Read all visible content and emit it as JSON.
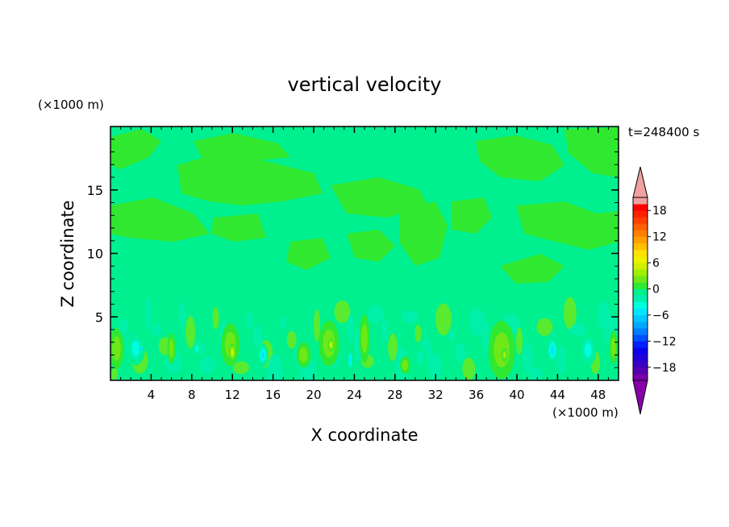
{
  "chart_data": {
    "type": "heatmap",
    "title": "vertical velocity",
    "time_label": "t=248400 s",
    "xlabel": "X coordinate",
    "ylabel": "Z coordinate",
    "x_unit": "(×1000 m)",
    "y_unit": "(×1000 m)",
    "xlim": [
      0,
      50
    ],
    "ylim": [
      0,
      20
    ],
    "x_ticks": [
      4,
      8,
      12,
      16,
      20,
      24,
      28,
      32,
      36,
      40,
      44,
      48
    ],
    "y_ticks": [
      5,
      10,
      15
    ],
    "colorbar": {
      "levels": [
        -21,
        -19.5,
        -18,
        -16.5,
        -15,
        -13.5,
        -12,
        -10.5,
        -9,
        -7.5,
        -6,
        -4.5,
        -3,
        -1.5,
        0,
        1.5,
        3,
        4.5,
        6,
        7.5,
        9,
        10.5,
        12,
        13.5,
        15,
        16.5,
        18,
        19.5,
        21
      ],
      "tick_values": [
        -18,
        -12,
        -6,
        0,
        6,
        12,
        18
      ],
      "tick_labels": [
        "−18",
        "−12",
        "−6",
        "0",
        "6",
        "12",
        "18"
      ],
      "colors": [
        "#7800a8",
        "#5500b0",
        "#3a00c0",
        "#1f00d8",
        "#0a00f0",
        "#0020ff",
        "#0050ff",
        "#0080ff",
        "#00a8ff",
        "#00c8ff",
        "#00e6ff",
        "#00ffe0",
        "#00f0b0",
        "#00f090",
        "#30e830",
        "#70e818",
        "#a0f000",
        "#d0f000",
        "#f0f000",
        "#ffe000",
        "#ffc000",
        "#ffa000",
        "#ff8000",
        "#ff6000",
        "#ff4000",
        "#ff2000",
        "#ff0000",
        "#f0a0a0"
      ],
      "under_color": "#8800aa",
      "over_color": "#f0a0a0"
    },
    "field_background": "#00f090",
    "features": [
      {
        "kind": "updraft",
        "x": 0.6,
        "z": 2.5,
        "sx": 0.7,
        "sz": 1.6,
        "value": 2.0
      },
      {
        "kind": "downdraft",
        "x": 2.5,
        "z": 2.5,
        "sx": 0.9,
        "sz": 1.3,
        "value": -3.5
      },
      {
        "kind": "downdraft",
        "x": 3.0,
        "z": 2.5,
        "sx": 0.25,
        "sz": 0.35,
        "value": -6.5
      },
      {
        "kind": "updraft",
        "x": 6.0,
        "z": 2.5,
        "sx": 0.4,
        "sz": 1.2,
        "value": 1.8
      },
      {
        "kind": "downdraft",
        "x": 8.5,
        "z": 2.5,
        "sx": 0.3,
        "sz": 0.6,
        "value": -3.5
      },
      {
        "kind": "updraft",
        "x": 11.8,
        "z": 2.8,
        "sx": 0.9,
        "sz": 1.7,
        "value": 2.5
      },
      {
        "kind": "updraft",
        "x": 12.0,
        "z": 2.2,
        "sx": 0.35,
        "sz": 0.7,
        "value": 5.2
      },
      {
        "kind": "downdraft",
        "x": 15.0,
        "z": 2.0,
        "sx": 0.5,
        "sz": 0.9,
        "value": -5.0
      },
      {
        "kind": "updraft",
        "x": 19.0,
        "z": 2.0,
        "sx": 0.7,
        "sz": 1.0,
        "value": 2.0
      },
      {
        "kind": "updraft",
        "x": 21.5,
        "z": 2.9,
        "sx": 1.0,
        "sz": 1.8,
        "value": 2.5
      },
      {
        "kind": "updraft",
        "x": 21.7,
        "z": 2.8,
        "sx": 0.3,
        "sz": 0.5,
        "value": 4.8
      },
      {
        "kind": "downdraft",
        "x": 23.6,
        "z": 1.6,
        "sx": 0.3,
        "sz": 0.8,
        "value": -6.0
      },
      {
        "kind": "updraft",
        "x": 25.0,
        "z": 3.3,
        "sx": 0.5,
        "sz": 1.9,
        "value": 2.0
      },
      {
        "kind": "updraft",
        "x": 29.0,
        "z": 1.2,
        "sx": 0.5,
        "sz": 0.7,
        "value": 2.0
      },
      {
        "kind": "downdraft",
        "x": 30.5,
        "z": 1.8,
        "sx": 0.6,
        "sz": 0.8,
        "value": -2.5
      },
      {
        "kind": "updraft",
        "x": 38.5,
        "z": 2.4,
        "sx": 1.3,
        "sz": 2.3,
        "value": 2.0
      },
      {
        "kind": "updraft",
        "x": 38.8,
        "z": 2.0,
        "sx": 0.3,
        "sz": 0.5,
        "value": 3.7
      },
      {
        "kind": "downdraft",
        "x": 43.5,
        "z": 2.4,
        "sx": 0.6,
        "sz": 1.1,
        "value": -5.5
      },
      {
        "kind": "downdraft",
        "x": 47.0,
        "z": 2.4,
        "sx": 0.8,
        "sz": 1.3,
        "value": -3.5
      },
      {
        "kind": "updraft",
        "x": 49.5,
        "z": 2.6,
        "sx": 0.4,
        "sz": 1.3,
        "value": 2.2
      }
    ]
  }
}
